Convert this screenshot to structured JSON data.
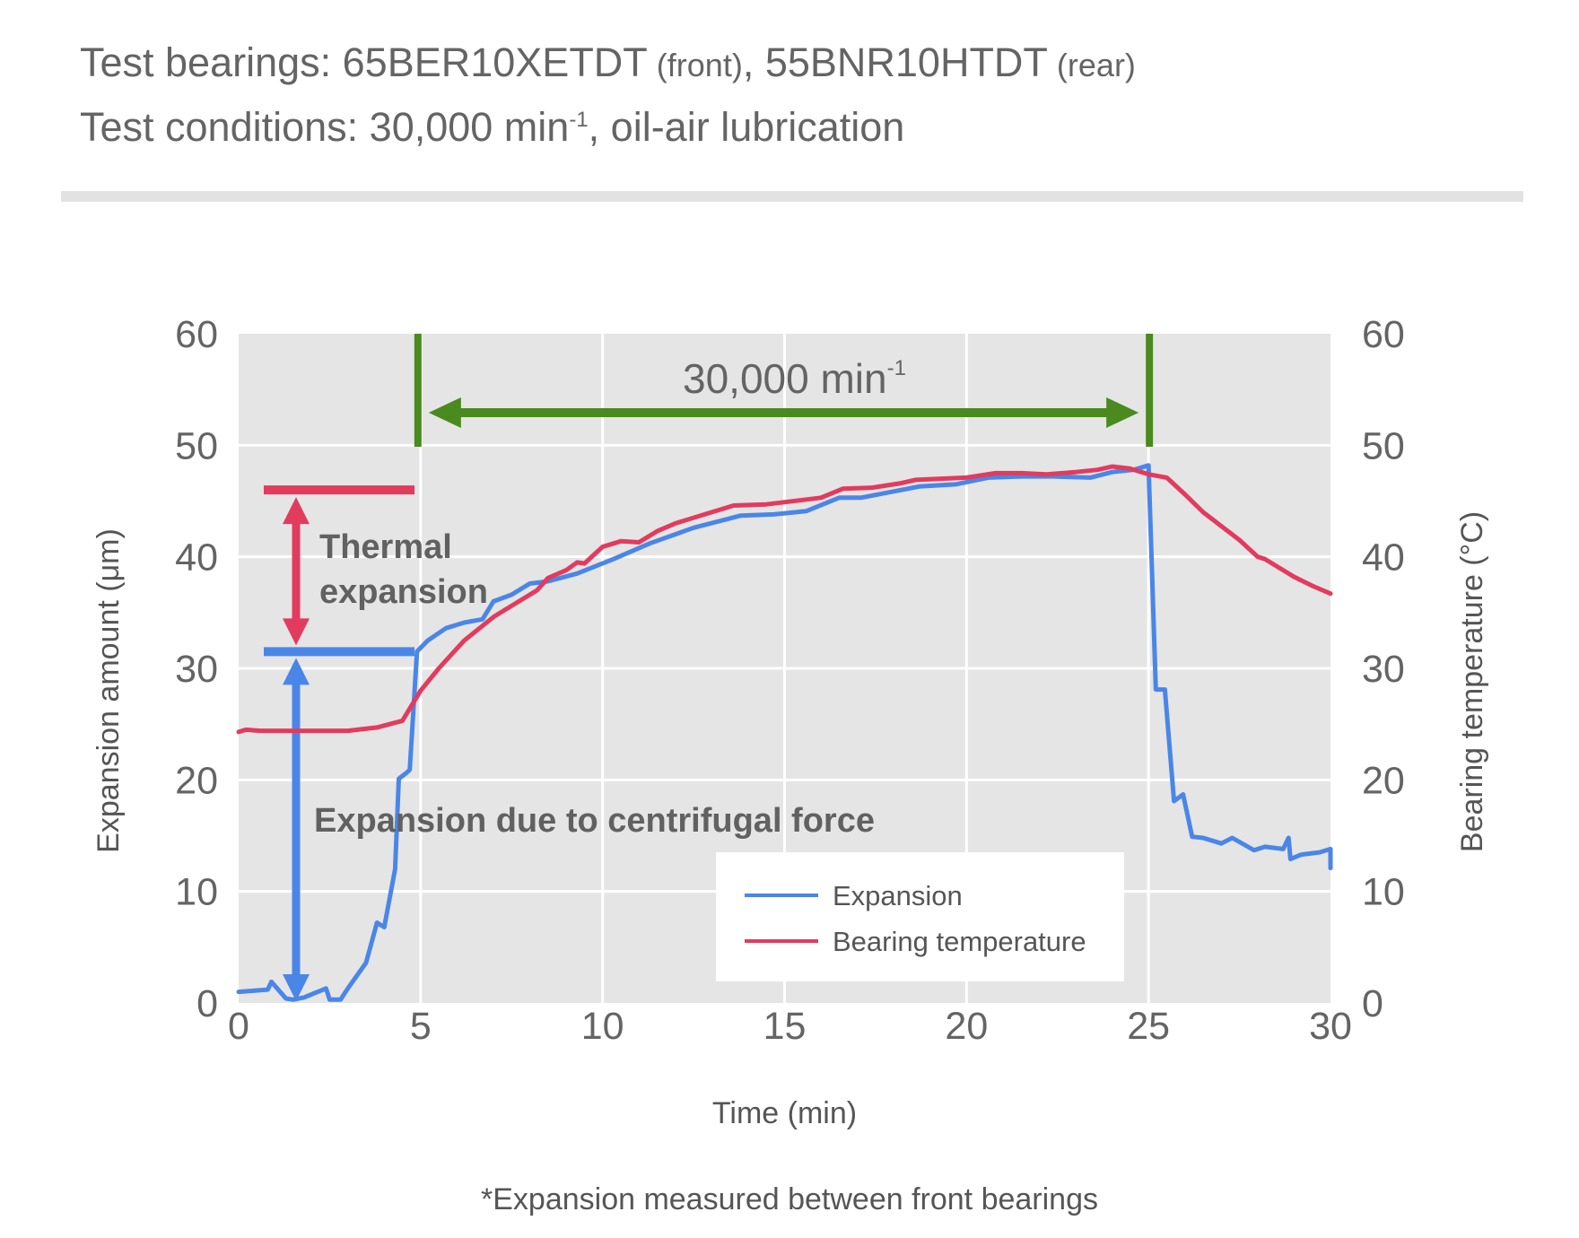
{
  "header": {
    "line1": {
      "prefix": "Test bearings: ",
      "front_model": "65BER10XETDT",
      "front_note": " (front)",
      "separator": ", ",
      "rear_model": "55BNR10HTDT",
      "rear_note": " (rear)"
    },
    "line2": {
      "prefix": "Test conditions: 30,000 min",
      "sup": "-1",
      "suffix": ", oil-air lubrication"
    }
  },
  "footnote": "*Expansion measured between front bearings",
  "colors": {
    "expansion": "#4a86e8",
    "temperature": "#e23b5e",
    "speed_marker": "#4a8a1e",
    "plot_bg": "#e5e5e5",
    "grid": "#ffffff"
  },
  "chart_data": {
    "type": "line",
    "xlabel": "Time (min)",
    "ylabel": "Expansion amount (μm)",
    "y2label": "Bearing temperature (°C)",
    "xlim": [
      0,
      30
    ],
    "ylim": [
      0,
      60
    ],
    "y2lim": [
      0,
      60
    ],
    "xticks": [
      "0",
      "5",
      "10",
      "15",
      "20",
      "25",
      "30"
    ],
    "yticks": [
      "0",
      "10",
      "20",
      "30",
      "40",
      "50",
      "60"
    ],
    "y2ticks": [
      "0",
      "10",
      "20",
      "30",
      "40",
      "50",
      "60"
    ],
    "grid": true,
    "legend_position": "bottom-right",
    "series": [
      {
        "name": "Expansion",
        "axis": "left",
        "x": [
          0,
          0.8,
          0.9,
          1.3,
          1.5,
          1.8,
          2.4,
          2.5,
          2.8,
          3.0,
          3.5,
          3.8,
          4.0,
          4.3,
          4.4,
          4.6,
          4.7,
          4.9,
          5.2,
          5.7,
          6.2,
          6.7,
          7.0,
          7.5,
          8.0,
          8.5,
          9.3,
          10.3,
          11.3,
          12.5,
          13.8,
          14.7,
          15.6,
          16.5,
          17.1,
          17.9,
          18.7,
          19.7,
          20.6,
          21.5,
          22.4,
          23.4,
          24.0,
          24.6,
          25.0,
          25.2,
          25.45,
          25.7,
          25.95,
          26.2,
          26.5,
          27.0,
          27.3,
          27.9,
          28.2,
          28.7,
          28.85,
          28.9,
          29.2,
          29.7,
          30.0,
          30.0
        ],
        "y": [
          1.0,
          1.2,
          1.9,
          0.4,
          0.3,
          0.5,
          1.3,
          0.3,
          0.3,
          1.3,
          3.6,
          7.2,
          6.8,
          12.0,
          20.1,
          20.6,
          20.9,
          31.5,
          32.5,
          33.6,
          34.1,
          34.4,
          36.0,
          36.6,
          37.6,
          37.8,
          38.5,
          39.8,
          41.2,
          42.6,
          43.7,
          43.8,
          44.1,
          45.3,
          45.3,
          45.8,
          46.3,
          46.5,
          47.1,
          47.2,
          47.2,
          47.1,
          47.6,
          47.8,
          48.2,
          28.1,
          28.1,
          18.1,
          18.7,
          14.9,
          14.8,
          14.3,
          14.8,
          13.7,
          14.0,
          13.8,
          14.8,
          12.9,
          13.3,
          13.5,
          13.8,
          12.1
        ]
      },
      {
        "name": "Bearing temperature",
        "axis": "right",
        "x": [
          0,
          0.2,
          0.6,
          1.5,
          2.5,
          3.0,
          3.8,
          4.5,
          5.0,
          5.5,
          6.2,
          7.0,
          7.3,
          7.8,
          8.2,
          8.5,
          9.0,
          9.3,
          9.5,
          10.0,
          10.5,
          11.0,
          11.5,
          12.0,
          12.8,
          13.6,
          14.5,
          15.5,
          16.0,
          16.6,
          17.4,
          18.2,
          18.6,
          19.3,
          20.0,
          20.8,
          21.5,
          22.2,
          23.0,
          23.6,
          24.0,
          24.5,
          25.0,
          25.5,
          26.0,
          26.5,
          27.1,
          27.5,
          28.0,
          28.2,
          28.6,
          29.0,
          29.5,
          30.0
        ],
        "y": [
          24.3,
          24.5,
          24.4,
          24.4,
          24.4,
          24.4,
          24.7,
          25.3,
          28.0,
          30.0,
          32.5,
          34.6,
          35.2,
          36.2,
          37.0,
          38.1,
          38.8,
          39.5,
          39.4,
          40.9,
          41.4,
          41.3,
          42.3,
          43.0,
          43.8,
          44.6,
          44.7,
          45.1,
          45.3,
          46.1,
          46.2,
          46.6,
          46.9,
          47.0,
          47.1,
          47.5,
          47.5,
          47.4,
          47.6,
          47.8,
          48.1,
          47.9,
          47.4,
          47.1,
          45.6,
          44.0,
          42.5,
          41.5,
          40.0,
          39.8,
          39.0,
          38.2,
          37.4,
          36.7
        ]
      }
    ],
    "annotations": {
      "speed_label": {
        "text": "30,000 min",
        "sup": "-1",
        "x_start": 5,
        "x_end": 25
      },
      "thermal": {
        "text_line1": "Thermal",
        "text_line2": "expansion",
        "y_top": 46,
        "y_bottom": 31.5
      },
      "centrifugal": {
        "text": "Expansion due to centrifugal force",
        "y_top": 31.5,
        "y_bottom": 0
      }
    }
  }
}
